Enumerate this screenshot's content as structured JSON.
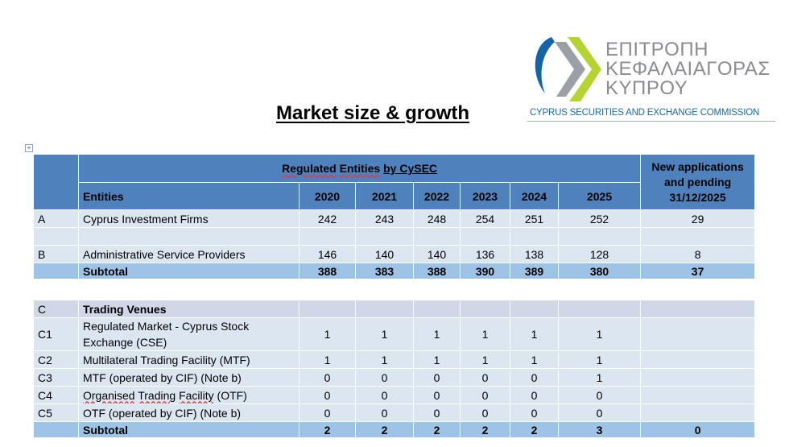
{
  "logo": {
    "lines": [
      "ΕΠΙΤΡΟΠΗ",
      "ΚΕΦΑΛΑΙΑΓΟΡΑΣ",
      "ΚΥΠΡΟΥ"
    ],
    "subtitle": "CYPRUS SECURITIES AND EXCHANGE COMMISSION",
    "colors": {
      "blue": "#1565a6",
      "green": "#b6d334",
      "grey": "#8a8c8f"
    }
  },
  "page_title": "Market size & growth",
  "table": {
    "group_header": {
      "part1": "Regulated",
      "part2": "Entities",
      "part3": "by CySEC"
    },
    "new_applications_header": "New applications and pending 31/12/2025",
    "entities_header": "Entities",
    "years": [
      "2020",
      "2021",
      "2022",
      "2023",
      "2024",
      "2025"
    ],
    "rows": [
      {
        "kind": "data",
        "code": "A",
        "name": "Cyprus Investment Firms",
        "values": [
          "242",
          "243",
          "248",
          "254",
          "251",
          "252"
        ],
        "new": "29"
      },
      {
        "kind": "blank"
      },
      {
        "kind": "data",
        "code": "B",
        "name": "Administrative Service Providers",
        "values": [
          "146",
          "140",
          "140",
          "136",
          "138",
          "128"
        ],
        "new": "8"
      },
      {
        "kind": "subtotal",
        "code": "",
        "name": "Subtotal",
        "values": [
          "388",
          "383",
          "388",
          "390",
          "389",
          "380"
        ],
        "new": "37"
      },
      {
        "kind": "plain"
      },
      {
        "kind": "section",
        "code": "C",
        "name": "Trading Venues"
      },
      {
        "kind": "data",
        "code": "C1",
        "name": "Regulated Market - Cyprus Stock Exchange (CSE)",
        "values": [
          "1",
          "1",
          "1",
          "1",
          "1",
          "1"
        ],
        "new": "",
        "tall": true
      },
      {
        "kind": "data",
        "code": "C2",
        "name": "Multilateral Trading Facility (MTF)",
        "values": [
          "1",
          "1",
          "1",
          "1",
          "1",
          "1"
        ],
        "new": ""
      },
      {
        "kind": "data",
        "code": "C3",
        "name": "MTF (operated by CIF) (Note b)",
        "values": [
          "0",
          "0",
          "0",
          "0",
          "0",
          "1"
        ],
        "new": ""
      },
      {
        "kind": "data",
        "code": "C4",
        "name_parts": [
          "Organised",
          "Trading",
          "Facility",
          "(OTF)"
        ],
        "name": "Organised Trading Facility (OTF)",
        "values": [
          "0",
          "0",
          "0",
          "0",
          "0",
          "0"
        ],
        "new": ""
      },
      {
        "kind": "data",
        "code": "C5",
        "name": "OTF (operated by CIF) (Note b)",
        "values": [
          "0",
          "0",
          "0",
          "0",
          "0",
          "0"
        ],
        "new": ""
      },
      {
        "kind": "subtotal",
        "code": "",
        "name": "Subtotal",
        "values": [
          "2",
          "2",
          "2",
          "2",
          "2",
          "3"
        ],
        "new": "0"
      }
    ]
  }
}
